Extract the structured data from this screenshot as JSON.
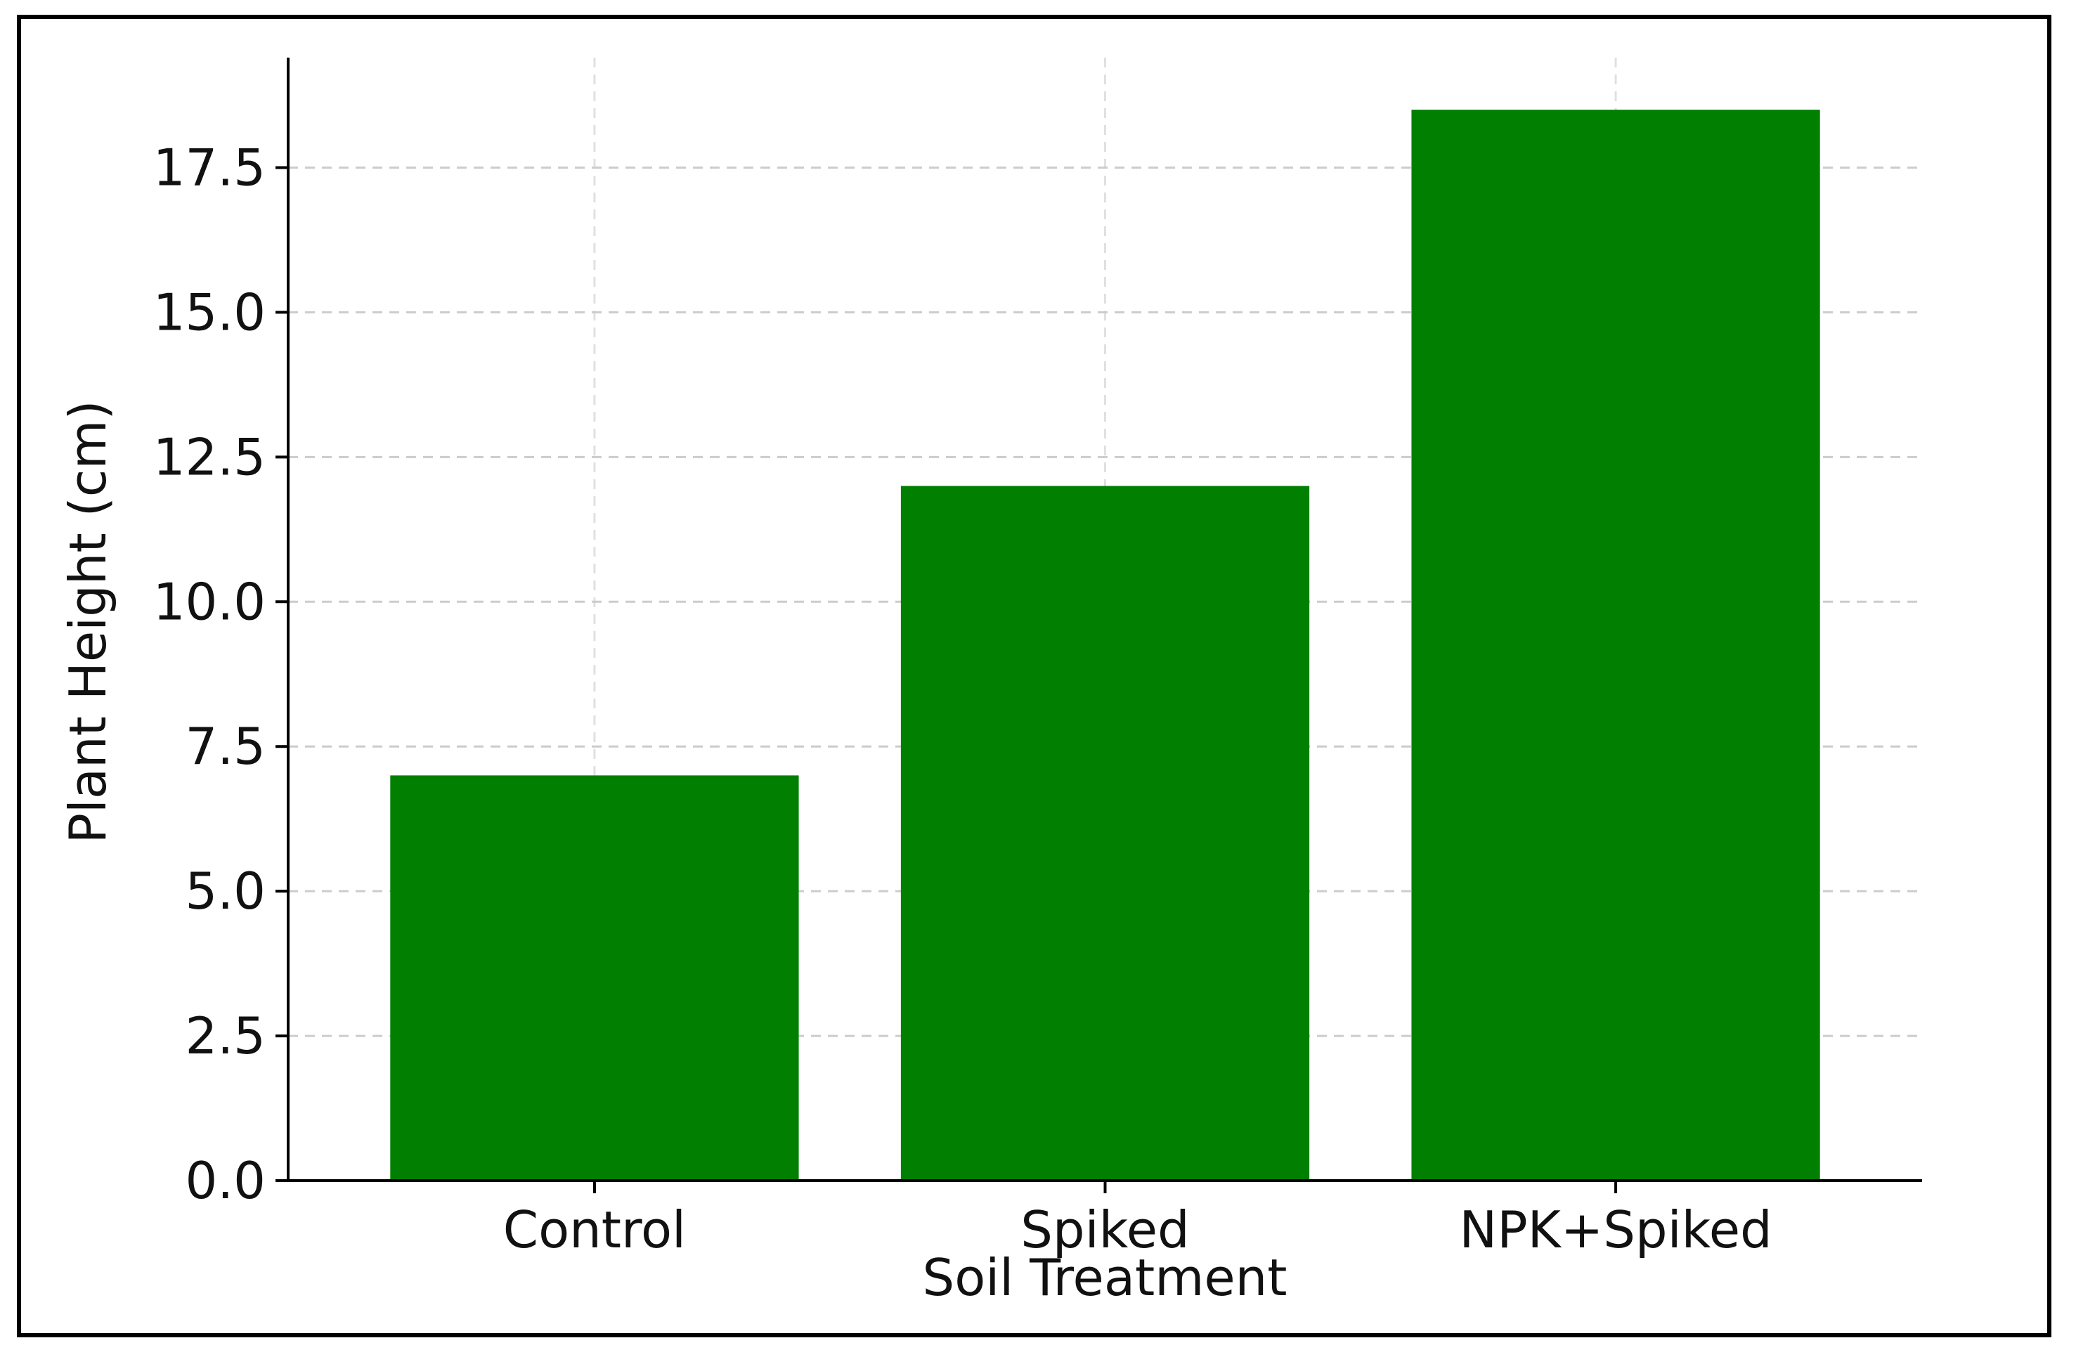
{
  "chart_data": {
    "type": "bar",
    "title": "",
    "xlabel": "Soil Treatment",
    "ylabel": "Plant Height (cm)",
    "categories": [
      "Control",
      "Spiked",
      "NPK+Spiked"
    ],
    "values": [
      7.0,
      12.0,
      18.5
    ],
    "ylim": [
      0,
      19.4
    ],
    "yticks": [
      0.0,
      2.5,
      5.0,
      7.5,
      10.0,
      12.5,
      15.0,
      17.5
    ],
    "ytick_labels": [
      "0.0",
      "2.5",
      "5.0",
      "7.5",
      "10.0",
      "12.5",
      "15.0",
      "17.5"
    ],
    "grid": true,
    "grid_style": "dashed",
    "bar_color": "#007f00",
    "grid_color": "#cccccc",
    "axis_color": "#000000"
  }
}
